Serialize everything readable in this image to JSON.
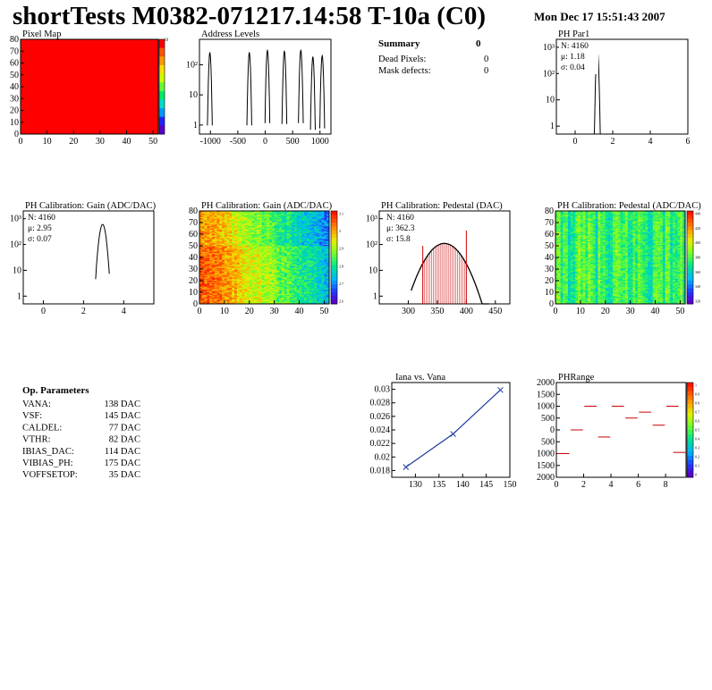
{
  "header": {
    "title": "shortTests M0382-071217.14:58 T-10a (C0)",
    "date": "Mon Dec 17 15:51:43 2007"
  },
  "summary": {
    "title": "Summary",
    "title_value": "0",
    "rows": [
      {
        "label": "Dead Pixels:",
        "value": "0"
      },
      {
        "label": "Mask defects:",
        "value": "0"
      }
    ]
  },
  "op_parameters": {
    "title": "Op. Parameters",
    "rows": [
      {
        "label": "VANA:",
        "value": "138 DAC"
      },
      {
        "label": "VSF:",
        "value": "145 DAC"
      },
      {
        "label": "CALDEL:",
        "value": "77 DAC"
      },
      {
        "label": "VTHR:",
        "value": "82 DAC"
      },
      {
        "label": "IBIAS_DAC:",
        "value": "114 DAC"
      },
      {
        "label": "VIBIAS_PH:",
        "value": "175 DAC"
      },
      {
        "label": "VOFFSETOP:",
        "value": "35 DAC"
      }
    ]
  },
  "chart_data": [
    {
      "id": "pixel_map",
      "type": "heatmap",
      "title": "Pixel Map",
      "xlim": [
        0,
        52
      ],
      "ylim": [
        0,
        80
      ],
      "xticks": [
        "0",
        "10",
        "20",
        "30",
        "40",
        "50"
      ],
      "yticks": [
        "0",
        "10",
        "20",
        "30",
        "40",
        "50",
        "60",
        "70",
        "80"
      ],
      "fill_color": "#ff0000",
      "colorbar_max": "10",
      "colors": [
        "#ff0000",
        "#ff5500",
        "#ff9900",
        "#ffdd00",
        "#ccff00",
        "#66ff33",
        "#00ee66",
        "#00ddcc",
        "#0099ff",
        "#2222ff",
        "#5500cc"
      ]
    },
    {
      "id": "address_levels",
      "type": "line",
      "title": "Address Levels",
      "log_y": true,
      "xlim": [
        -1200,
        1200
      ],
      "ylim": [
        0.5,
        700
      ],
      "xticks": [
        "-1000",
        "-500",
        "0",
        "500",
        "1000"
      ],
      "yticks": [
        "1",
        "10",
        "10²"
      ],
      "peaks": [
        {
          "x": -1010,
          "h": 250
        },
        {
          "x": -290,
          "h": 250
        },
        {
          "x": 40,
          "h": 300
        },
        {
          "x": 350,
          "h": 280
        },
        {
          "x": 650,
          "h": 300
        },
        {
          "x": 870,
          "h": 180
        },
        {
          "x": 1040,
          "h": 200
        }
      ]
    },
    {
      "id": "ph_par1",
      "type": "line",
      "title": "PH Par1",
      "log_y": true,
      "xlim": [
        -1,
        6
      ],
      "ylim": [
        0.5,
        2000
      ],
      "xticks": [
        "0",
        "2",
        "4",
        "6"
      ],
      "yticks": [
        "1",
        "10",
        "10²",
        "10³"
      ],
      "stats": {
        "n": "N: 4160",
        "mean": "μ: 1.18",
        "sigma": "σ: 0.04"
      },
      "peak": {
        "mean": 1.18,
        "sigma": 0.04,
        "height": 900
      }
    },
    {
      "id": "ph_gain_1d",
      "type": "line",
      "title": "PH Calibration: Gain (ADC/DAC)",
      "log_y": true,
      "xlim": [
        -1,
        5.5
      ],
      "ylim": [
        0.5,
        2000
      ],
      "xticks": [
        "0",
        "2",
        "4"
      ],
      "yticks": [
        "1",
        "10",
        "10²",
        "10³"
      ],
      "stats": {
        "n": "N: 4160",
        "mean": "μ: 2.95",
        "sigma": "σ: 0.07"
      },
      "peak": {
        "mean": 2.95,
        "sigma": 0.07,
        "height": 600
      }
    },
    {
      "id": "ph_gain_map",
      "type": "heatmap",
      "title": "PH Calibration: Gain (ADC/DAC)",
      "xlim": [
        0,
        52
      ],
      "ylim": [
        0,
        80
      ],
      "xticks": [
        "0",
        "10",
        "20",
        "30",
        "40",
        "50"
      ],
      "yticks": [
        "0",
        "10",
        "20",
        "30",
        "40",
        "50",
        "60",
        "70",
        "80"
      ],
      "colorbar_labels": [
        "3.1",
        "3",
        "2.9",
        "2.8",
        "2.7",
        "2.6"
      ]
    },
    {
      "id": "ph_pedestal_1d",
      "type": "bar",
      "title": "PH Calibration: Pedestal (DAC)",
      "log_y": true,
      "xlim": [
        250,
        475
      ],
      "ylim": [
        0.5,
        2000
      ],
      "xticks": [
        "300",
        "350",
        "400",
        "450"
      ],
      "yticks": [
        "1",
        "10",
        "10²",
        "10³"
      ],
      "stats": {
        "n": "N: 4160",
        "mean": "μ: 362.3",
        "sigma": "σ: 15.8"
      },
      "peak": {
        "mean": 362.3,
        "sigma": 15.8,
        "height": 110
      },
      "cut_lines": [
        325,
        400
      ]
    },
    {
      "id": "ph_pedestal_map",
      "type": "heatmap",
      "title": "PH Calibration: Pedestal (ADC/DAC)",
      "xlim": [
        0,
        52
      ],
      "ylim": [
        0,
        80
      ],
      "xticks": [
        "0",
        "10",
        "20",
        "30",
        "40",
        "50"
      ],
      "yticks": [
        "0",
        "10",
        "20",
        "30",
        "40",
        "50",
        "60",
        "70",
        "80"
      ],
      "colorbar_labels": [
        "440",
        "420",
        "400",
        "380",
        "360",
        "340",
        "320"
      ]
    },
    {
      "id": "iana_vs_vana",
      "type": "line",
      "title": "Iana vs. Vana",
      "xlim": [
        125,
        150
      ],
      "ylim": [
        0.017,
        0.031
      ],
      "xticks": [
        "130",
        "135",
        "140",
        "145",
        "150"
      ],
      "yticks": [
        "0.018",
        "0.02",
        "0.022",
        "0.024",
        "0.026",
        "0.028",
        "0.03"
      ],
      "x": [
        128,
        138,
        148
      ],
      "y": [
        0.0185,
        0.0234,
        0.0299
      ]
    },
    {
      "id": "ph_range",
      "type": "scatter",
      "title": "PHRange",
      "xlim": [
        0,
        9.5
      ],
      "ylim": [
        -2000,
        2000
      ],
      "xticks": [
        "0",
        "2",
        "4",
        "6",
        "8"
      ],
      "yticks": [
        "2000",
        "1500",
        "1000",
        "500",
        "0",
        "500",
        "1000",
        "1500",
        "2000"
      ],
      "colorbar_labels": [
        "1",
        "0.9",
        "0.8",
        "0.7",
        "0.6",
        "0.5",
        "0.4",
        "0.3",
        "0.2",
        "0.1",
        "0"
      ],
      "segments": [
        {
          "x": 0.5,
          "y": -1000
        },
        {
          "x": 1.5,
          "y": 0
        },
        {
          "x": 2.5,
          "y": 1000
        },
        {
          "x": 3.5,
          "y": -300
        },
        {
          "x": 4.5,
          "y": 1000
        },
        {
          "x": 5.5,
          "y": 500
        },
        {
          "x": 6.5,
          "y": 750
        },
        {
          "x": 7.5,
          "y": 200
        },
        {
          "x": 8.5,
          "y": 1000
        },
        {
          "x": 9.0,
          "y": -950
        }
      ]
    }
  ]
}
